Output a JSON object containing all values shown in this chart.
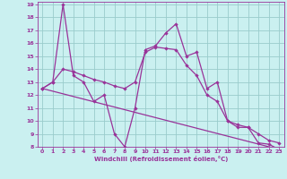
{
  "xlabel": "Windchill (Refroidissement éolien,°C)",
  "bg_color": "#caf0f0",
  "grid_color": "#99cccc",
  "line_color": "#993399",
  "xlim": [
    -0.5,
    23.5
  ],
  "ylim": [
    8,
    19.2
  ],
  "xticks": [
    0,
    1,
    2,
    3,
    4,
    5,
    6,
    7,
    8,
    9,
    10,
    11,
    12,
    13,
    14,
    15,
    16,
    17,
    18,
    19,
    20,
    21,
    22,
    23
  ],
  "yticks": [
    8,
    9,
    10,
    11,
    12,
    13,
    14,
    15,
    16,
    17,
    18,
    19
  ],
  "line1_x": [
    0,
    1,
    2,
    3,
    4,
    5,
    6,
    7,
    8,
    9,
    10,
    11,
    12,
    13,
    14,
    15,
    16,
    17,
    18,
    19,
    20,
    21,
    22,
    23
  ],
  "line1_y": [
    12.5,
    13.0,
    19.0,
    13.5,
    13.0,
    11.5,
    12.0,
    9.0,
    8.0,
    11.0,
    15.5,
    15.8,
    16.8,
    17.5,
    15.0,
    15.3,
    12.5,
    13.0,
    10.0,
    9.5,
    9.5,
    8.3,
    8.2,
    7.8
  ],
  "line2_x": [
    0,
    23
  ],
  "line2_y": [
    12.5,
    7.8
  ],
  "line3_x": [
    0,
    1,
    2,
    3,
    4,
    5,
    6,
    7,
    8,
    9,
    10,
    11,
    12,
    13,
    14,
    15,
    16,
    17,
    18,
    19,
    20,
    21,
    22,
    23
  ],
  "line3_y": [
    12.5,
    13.0,
    14.0,
    13.8,
    13.5,
    13.2,
    13.0,
    12.7,
    12.5,
    13.0,
    15.3,
    15.7,
    15.6,
    15.5,
    14.3,
    13.5,
    12.0,
    11.5,
    10.0,
    9.7,
    9.5,
    9.0,
    8.5,
    8.3
  ]
}
